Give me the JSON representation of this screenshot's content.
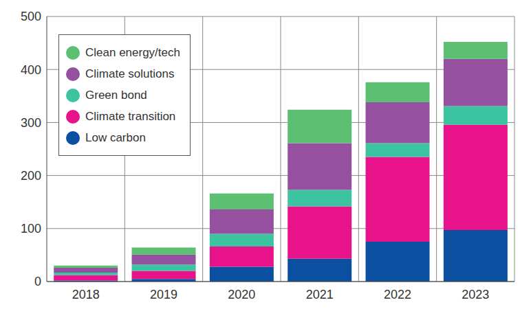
{
  "chart_data": {
    "type": "bar",
    "stacked": true,
    "grid": true,
    "legend": "top-left",
    "categories": [
      "2018",
      "2019",
      "2020",
      "2021",
      "2022",
      "2023"
    ],
    "ylim": [
      0,
      500
    ],
    "yticks": [
      0,
      100,
      200,
      300,
      400,
      500
    ],
    "series": [
      {
        "name": "Low carbon",
        "color": "#0a4fa0",
        "values": [
          2,
          5,
          28,
          43,
          75,
          97
        ]
      },
      {
        "name": "Climate transition",
        "color": "#e8138b",
        "values": [
          10,
          15,
          38,
          99,
          160,
          199
        ]
      },
      {
        "name": "Green bond",
        "color": "#3cc3a0",
        "values": [
          5,
          12,
          24,
          31,
          26,
          35
        ]
      },
      {
        "name": "Climate solutions",
        "color": "#9550a0",
        "values": [
          9,
          19,
          46,
          88,
          77,
          89
        ]
      },
      {
        "name": "Clean energy/tech",
        "color": "#5cbf72",
        "values": [
          4,
          13,
          30,
          63,
          38,
          32
        ]
      }
    ]
  }
}
